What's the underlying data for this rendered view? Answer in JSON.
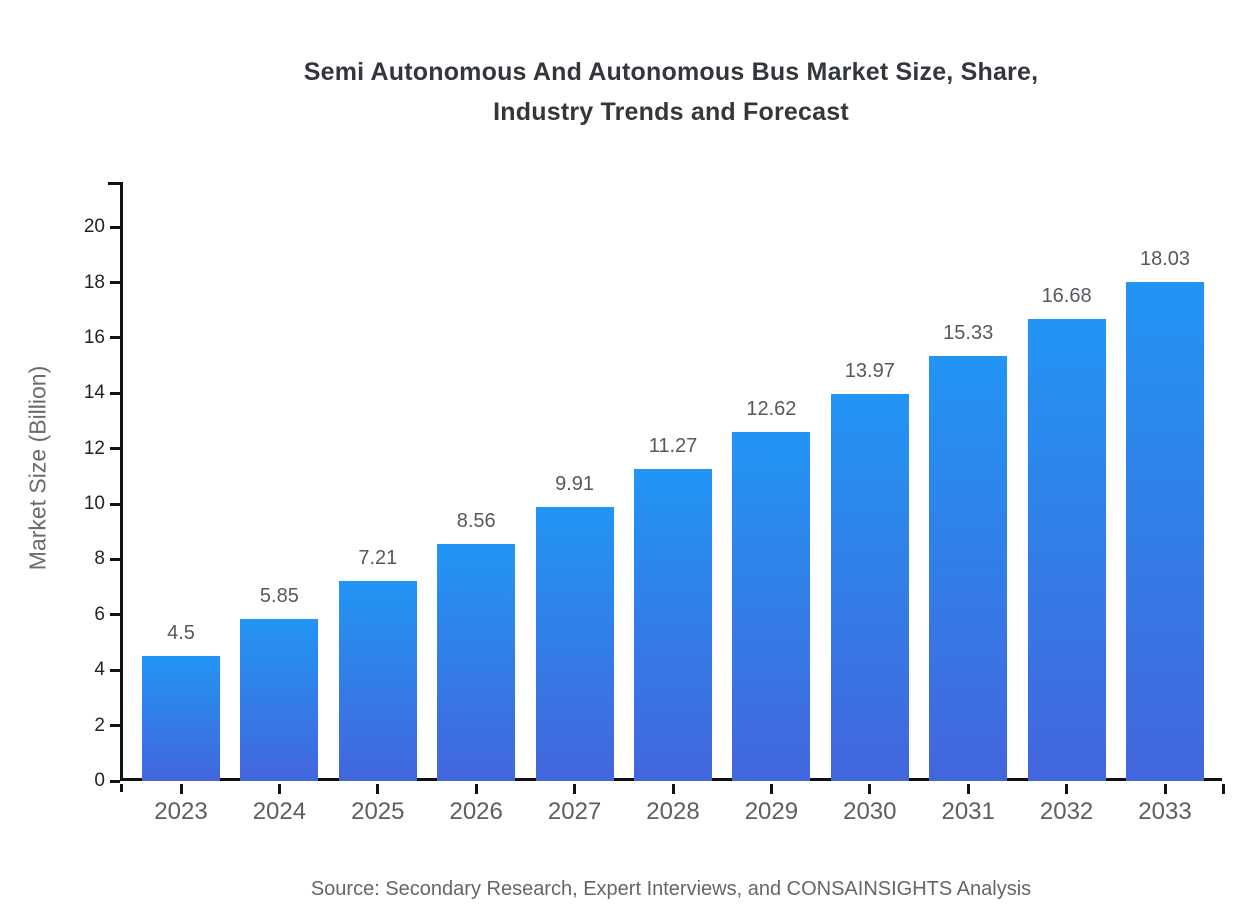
{
  "chart_data": {
    "type": "bar",
    "title": "Semi Autonomous And Autonomous Bus Market Size, Share, Industry Trends and Forecast",
    "title_lines": [
      "Semi Autonomous And Autonomous Bus Market Size, Share,",
      "Industry Trends and Forecast"
    ],
    "xlabel": "",
    "ylabel": "Market Size (Billion)",
    "categories": [
      "2023",
      "2024",
      "2025",
      "2026",
      "2027",
      "2028",
      "2029",
      "2030",
      "2031",
      "2032",
      "2033"
    ],
    "values": [
      4.5,
      5.85,
      7.21,
      8.56,
      9.91,
      11.27,
      12.62,
      13.97,
      15.33,
      16.68,
      18.03
    ],
    "value_labels": [
      "4.5",
      "5.85",
      "7.21",
      "8.56",
      "9.91",
      "11.27",
      "12.62",
      "13.97",
      "15.33",
      "16.68",
      "18.03"
    ],
    "ylim": [
      0,
      21.63
    ],
    "yticks": [
      0,
      2,
      4,
      6,
      8,
      10,
      12,
      14,
      16,
      18,
      20
    ],
    "grid": false,
    "legend": null,
    "source": "Source: Secondary Research, Expert Interviews, and CONSAINSIGHTS Analysis",
    "colors": {
      "bar_gradient_top": "#2295f4",
      "bar_gradient_bottom": "#4366dc",
      "axis": "#111111",
      "y_tick_label": "#1f2328",
      "category_label": "#5a5f63",
      "value_label": "#55595e",
      "title": "#33373b",
      "muted_text": "#666666"
    }
  }
}
